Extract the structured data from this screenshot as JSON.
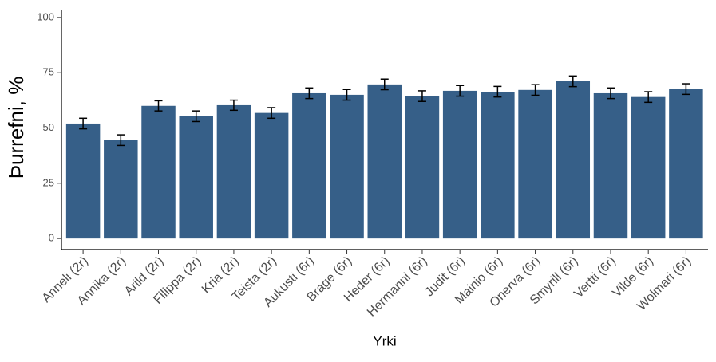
{
  "chart_data": {
    "type": "bar",
    "x_label": "Yrki",
    "y_label": "Þurrefni, %",
    "categories": [
      "Anneli (2r)",
      "Annika (2r)",
      "Arild (2r)",
      "Filippa (2r)",
      "Kria (2r)",
      "Teista (2r)",
      "Aukusti (6r)",
      "Brage (6r)",
      "Heder (6r)",
      "Hermanni (6r)",
      "Judit (6r)",
      "Mainio (6r)",
      "Onerva (6r)",
      "Smyrill (6r)",
      "Vertti (6r)",
      "Vilde (6r)",
      "Wolmari (6r)"
    ],
    "values": [
      52,
      44.5,
      60,
      55.3,
      60.3,
      56.8,
      65.7,
      65,
      69.7,
      64.4,
      66.8,
      66.4,
      67.2,
      71.1,
      65.7,
      64,
      67.6
    ],
    "errors": [
      2.4,
      2.4,
      2.3,
      2.4,
      2.3,
      2.4,
      2.4,
      2.4,
      2.4,
      2.4,
      2.4,
      2.4,
      2.4,
      2.4,
      2.4,
      2.4,
      2.4
    ],
    "color": "#365f88",
    "ylim": [
      -5,
      105
    ],
    "yticks": [
      0,
      25,
      50,
      75,
      100
    ],
    "grid": false
  }
}
